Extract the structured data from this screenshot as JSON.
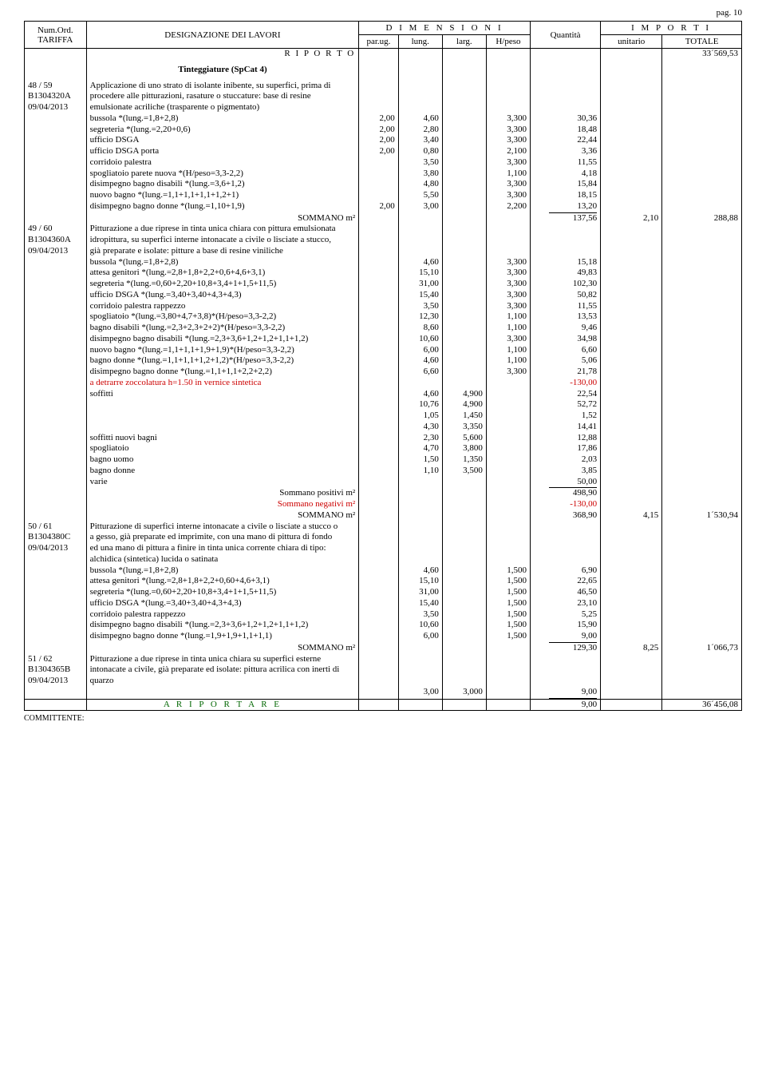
{
  "page_label": "pag. 10",
  "columns": {
    "tariffa_l1": "Num.Ord.",
    "tariffa_l2": "TARIFFA",
    "designazione": "DESIGNAZIONE DEI LAVORI",
    "dimensioni": "D I M E N S I O N I",
    "quantita": "Quantità",
    "importi": "I M P O R T I",
    "parug": "par.ug.",
    "lung": "lung.",
    "larg": "larg.",
    "hpeso": "H/peso",
    "unitario": "unitario",
    "totale": "TOTALE"
  },
  "col_widths": {
    "tariffa": 70,
    "desc": 310,
    "parug": 45,
    "lung": 50,
    "larg": 50,
    "hpeso": 50,
    "quantita": 80,
    "unitario": 70,
    "totale": 90
  },
  "riporto": {
    "label": "R I P O R T O",
    "value": "33´569,53"
  },
  "section_title": "Tinteggiature  (SpCat 4)",
  "item48": {
    "code_l1": "48 / 59",
    "code_l2": "B1304320A",
    "code_l3": "09/04/2013",
    "intro": [
      "Applicazione di uno strato di isolante inibente, su superfici, prima di",
      "procedere alle pitturazioni, rasature o stuccature: base di resine",
      "emulsionate acriliche (trasparente o pigmentato)"
    ],
    "rows": [
      {
        "d": "bussola *(lung.=1,8+2,8)",
        "parug": "2,00",
        "lung": "4,60",
        "larg": "",
        "hpeso": "3,300",
        "q": "30,36"
      },
      {
        "d": "segreteria *(lung.=2,20+0,6)",
        "parug": "2,00",
        "lung": "2,80",
        "larg": "",
        "hpeso": "3,300",
        "q": "18,48"
      },
      {
        "d": "ufficio DSGA",
        "parug": "2,00",
        "lung": "3,40",
        "larg": "",
        "hpeso": "3,300",
        "q": "22,44"
      },
      {
        "d": "ufficio DSGA porta",
        "parug": "2,00",
        "lung": "0,80",
        "larg": "",
        "hpeso": "2,100",
        "q": "3,36"
      },
      {
        "d": "corridoio palestra",
        "parug": "",
        "lung": "3,50",
        "larg": "",
        "hpeso": "3,300",
        "q": "11,55"
      },
      {
        "d": "spogliatoio parete nuova *(H/peso=3,3-2,2)",
        "parug": "",
        "lung": "3,80",
        "larg": "",
        "hpeso": "1,100",
        "q": "4,18"
      },
      {
        "d": "disimpegno bagno disabili *(lung.=3,6+1,2)",
        "parug": "",
        "lung": "4,80",
        "larg": "",
        "hpeso": "3,300",
        "q": "15,84"
      },
      {
        "d": "nuovo bagno *(lung.=1,1+1,1+1,1+1,2+1)",
        "parug": "",
        "lung": "5,50",
        "larg": "",
        "hpeso": "3,300",
        "q": "18,15"
      },
      {
        "d": "disimpegno bagno donne *(lung.=1,10+1,9)",
        "parug": "2,00",
        "lung": "3,00",
        "larg": "",
        "hpeso": "2,200",
        "q": "13,20"
      }
    ],
    "sum": {
      "label": "SOMMANO m²",
      "q": "137,56",
      "u": "2,10",
      "t": "288,88"
    }
  },
  "item49": {
    "code_l1": "49 / 60",
    "code_l2": "B1304360A",
    "code_l3": "09/04/2013",
    "intro": [
      "Pitturazione a due riprese in tinta unica chiara con pittura emulsionata",
      "idropittura, su superfici interne intonacate a civile o lisciate a stucco,",
      "già preparate e isolate: pitture a base di resine viniliche"
    ],
    "rows": [
      {
        "d": "bussola *(lung.=1,8+2,8)",
        "parug": "",
        "lung": "4,60",
        "larg": "",
        "hpeso": "3,300",
        "q": "15,18"
      },
      {
        "d": "attesa genitori *(lung.=2,8+1,8+2,2+0,6+4,6+3,1)",
        "parug": "",
        "lung": "15,10",
        "larg": "",
        "hpeso": "3,300",
        "q": "49,83"
      },
      {
        "d": "segreteria *(lung.=0,60+2,20+10,8+3,4+1+1,5+11,5)",
        "parug": "",
        "lung": "31,00",
        "larg": "",
        "hpeso": "3,300",
        "q": "102,30"
      },
      {
        "d": "ufficio DSGA *(lung.=3,40+3,40+4,3+4,3)",
        "parug": "",
        "lung": "15,40",
        "larg": "",
        "hpeso": "3,300",
        "q": "50,82"
      },
      {
        "d": "corridoio palestra rappezzo",
        "parug": "",
        "lung": "3,50",
        "larg": "",
        "hpeso": "3,300",
        "q": "11,55"
      },
      {
        "d": "spogliatoio  *(lung.=3,80+4,7+3,8)*(H/peso=3,3-2,2)",
        "parug": "",
        "lung": "12,30",
        "larg": "",
        "hpeso": "1,100",
        "q": "13,53"
      },
      {
        "d": "bagno disabili *(lung.=2,3+2,3+2+2)*(H/peso=3,3-2,2)",
        "parug": "",
        "lung": "8,60",
        "larg": "",
        "hpeso": "1,100",
        "q": "9,46"
      },
      {
        "d": "disimpegno bagno disabili *(lung.=2,3+3,6+1,2+1,2+1,1+1,2)",
        "parug": "",
        "lung": "10,60",
        "larg": "",
        "hpeso": "3,300",
        "q": "34,98"
      },
      {
        "d": "nuovo bagno *(lung.=1,1+1,1+1,9+1,9)*(H/peso=3,3-2,2)",
        "parug": "",
        "lung": "6,00",
        "larg": "",
        "hpeso": "1,100",
        "q": "6,60"
      },
      {
        "d": "bagno donne *(lung.=1,1+1,1+1,2+1,2)*(H/peso=3,3-2,2)",
        "parug": "",
        "lung": "4,60",
        "larg": "",
        "hpeso": "1,100",
        "q": "5,06"
      },
      {
        "d": "disimpegno bagno donne *(lung.=1,1+1,1+2,2+2,2)",
        "parug": "",
        "lung": "6,60",
        "larg": "",
        "hpeso": "3,300",
        "q": "21,78"
      },
      {
        "d": "a detrarre zoccolatura h=1.50 in vernice sintetica",
        "red": true,
        "parug": "",
        "lung": "",
        "larg": "",
        "hpeso": "",
        "q": "-130,00"
      },
      {
        "d": "soffitti",
        "parug": "",
        "lung": "4,60",
        "larg": "4,900",
        "hpeso": "",
        "q": "22,54"
      },
      {
        "d": "",
        "parug": "",
        "lung": "10,76",
        "larg": "4,900",
        "hpeso": "",
        "q": "52,72"
      },
      {
        "d": "",
        "parug": "",
        "lung": "1,05",
        "larg": "1,450",
        "hpeso": "",
        "q": "1,52"
      },
      {
        "d": "",
        "parug": "",
        "lung": "4,30",
        "larg": "3,350",
        "hpeso": "",
        "q": "14,41"
      },
      {
        "d": "soffitti nuovi bagni",
        "parug": "",
        "lung": "2,30",
        "larg": "5,600",
        "hpeso": "",
        "q": "12,88"
      },
      {
        "d": "spogliatoio",
        "parug": "",
        "lung": "4,70",
        "larg": "3,800",
        "hpeso": "",
        "q": "17,86"
      },
      {
        "d": "bagno uomo",
        "parug": "",
        "lung": "1,50",
        "larg": "1,350",
        "hpeso": "",
        "q": "2,03"
      },
      {
        "d": "bagno donne",
        "parug": "",
        "lung": "1,10",
        "larg": "3,500",
        "hpeso": "",
        "q": "3,85"
      },
      {
        "d": "varie",
        "parug": "",
        "lung": "",
        "larg": "",
        "hpeso": "",
        "q": "50,00"
      }
    ],
    "pos": {
      "label": "Sommano positivi m²",
      "q": "498,90"
    },
    "neg": {
      "label": "Sommano negativi m²",
      "q": "-130,00"
    },
    "sum": {
      "label": "SOMMANO m²",
      "q": "368,90",
      "u": "4,15",
      "t": "1´530,94"
    }
  },
  "item50": {
    "code_l1": "50 / 61",
    "code_l2": "B1304380C",
    "code_l3": "09/04/2013",
    "intro": [
      "Pitturazione di superfici interne intonacate a civile o lisciate a stucco o",
      "a gesso, già preparate ed imprimite, con una mano di pittura di fondo",
      "ed una mano di pittura a finire in tinta unica corrente chiara di tipo:",
      "alchidica (sintetica) lucida o satinata"
    ],
    "rows": [
      {
        "d": "bussola *(lung.=1,8+2,8)",
        "parug": "",
        "lung": "4,60",
        "larg": "",
        "hpeso": "1,500",
        "q": "6,90"
      },
      {
        "d": "attesa genitori *(lung.=2,8+1,8+2,2+0,60+4,6+3,1)",
        "parug": "",
        "lung": "15,10",
        "larg": "",
        "hpeso": "1,500",
        "q": "22,65"
      },
      {
        "d": "segreteria *(lung.=0,60+2,20+10,8+3,4+1+1,5+11,5)",
        "parug": "",
        "lung": "31,00",
        "larg": "",
        "hpeso": "1,500",
        "q": "46,50"
      },
      {
        "d": "ufficio DSGA *(lung.=3,40+3,40+4,3+4,3)",
        "parug": "",
        "lung": "15,40",
        "larg": "",
        "hpeso": "1,500",
        "q": "23,10"
      },
      {
        "d": "corridoio palestra rappezzo",
        "parug": "",
        "lung": "3,50",
        "larg": "",
        "hpeso": "1,500",
        "q": "5,25"
      },
      {
        "d": "disimpegno bagno disabili *(lung.=2,3+3,6+1,2+1,2+1,1+1,2)",
        "parug": "",
        "lung": "10,60",
        "larg": "",
        "hpeso": "1,500",
        "q": "15,90"
      },
      {
        "d": "disimpegno bagno donne *(lung.=1,9+1,9+1,1+1,1)",
        "parug": "",
        "lung": "6,00",
        "larg": "",
        "hpeso": "1,500",
        "q": "9,00"
      }
    ],
    "sum": {
      "label": "SOMMANO m²",
      "q": "129,30",
      "u": "8,25",
      "t": "1´066,73"
    }
  },
  "item51": {
    "code_l1": "51 / 62",
    "code_l2": "B1304365B",
    "code_l3": "09/04/2013",
    "intro": [
      "Pitturazione a due riprese in tinta unica chiara su superfici esterne",
      "intonacate a civile, già preparate ed isolate: pittura acrilica con inerti di",
      "quarzo"
    ],
    "rows": [
      {
        "d": "",
        "parug": "",
        "lung": "3,00",
        "larg": "3,000",
        "hpeso": "",
        "q": "9,00"
      }
    ]
  },
  "footer": {
    "label": "A   R I P O R T A R E",
    "q": "9,00",
    "t": "36´456,08"
  },
  "committente": "COMMITTENTE:"
}
